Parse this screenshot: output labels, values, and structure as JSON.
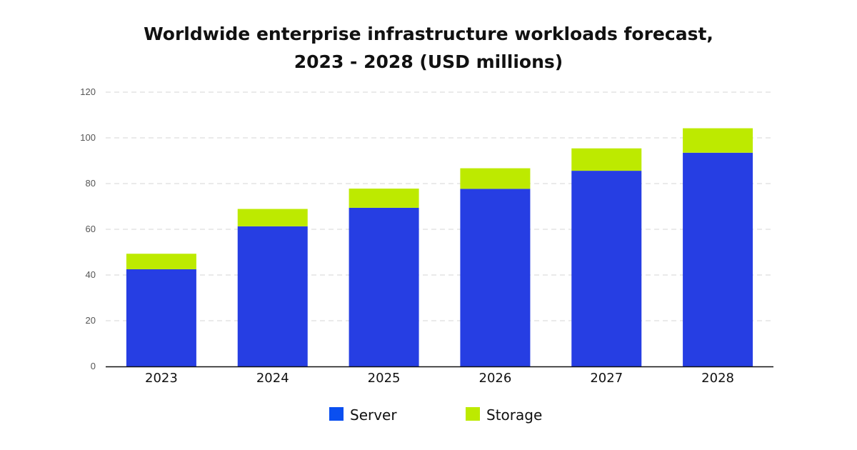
{
  "chart_data": {
    "type": "bar",
    "stacked": true,
    "title": "Worldwide enterprise infrastructure workloads forecast,\n2023 - 2028 (USD millions)",
    "title_lines": [
      "Worldwide enterprise infrastructure workloads forecast,",
      "2023 - 2028 (USD millions)"
    ],
    "xlabel": "",
    "ylabel": "",
    "categories": [
      "2023",
      "2024",
      "2025",
      "2026",
      "2027",
      "2028"
    ],
    "series": [
      {
        "name": "Server",
        "color": "#263ee3",
        "legend_color": "#0a4ff0",
        "values": [
          42.5,
          61.3,
          69.4,
          77.7,
          85.6,
          93.5
        ]
      },
      {
        "name": "Storage",
        "color": "#bdea00",
        "legend_color": "#bdea00",
        "values": [
          6.8,
          7.6,
          8.4,
          9.0,
          9.8,
          10.7
        ]
      }
    ],
    "ylim": [
      0,
      120
    ],
    "y_ticks": [
      0,
      20,
      40,
      60,
      80,
      100,
      120
    ],
    "grid": true,
    "legend_position": "bottom"
  }
}
